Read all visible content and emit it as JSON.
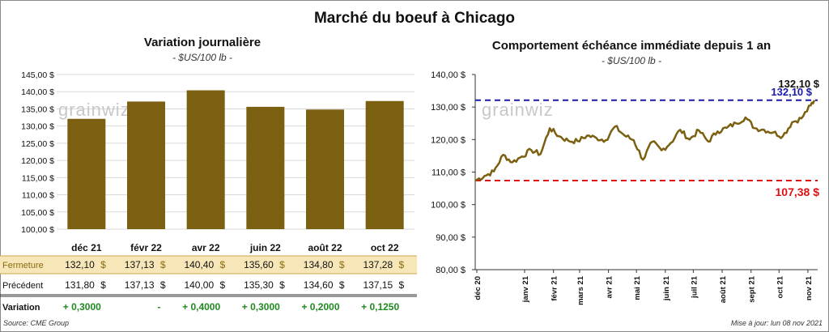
{
  "title": "Marché du boeuf à Chicago",
  "left": {
    "subtitle": "Variation journalière",
    "unit": "- $US/100 lb -",
    "watermark": "grainwiz",
    "y_ticks": [
      "145,00 $",
      "140,00 $",
      "135,00 $",
      "130,00 $",
      "125,00 $",
      "120,00 $",
      "115,00 $",
      "110,00 $",
      "105,00 $",
      "100,00 $"
    ],
    "table": {
      "fermeture_label": "Fermeture",
      "precedent_label": "Précédent",
      "variation_label": "Variation",
      "fermeture": [
        "132,10",
        "137,13",
        "140,40",
        "135,60",
        "134,80",
        "137,28"
      ],
      "precedent": [
        "131,80",
        "137,13",
        "140,00",
        "135,30",
        "134,60",
        "137,15"
      ],
      "variation": [
        "+ 0,3000",
        "-",
        "+ 0,4000",
        "+ 0,3000",
        "+ 0,2000",
        "+ 0,1250"
      ],
      "currency": "$"
    }
  },
  "right": {
    "subtitle": "Comportement  échéance immédiate depuis 1 an",
    "unit": "- $US/100 lb -",
    "watermark": "grainwiz",
    "y_ticks": [
      "140,00 $",
      "130,00 $",
      "120,00 $",
      "110,00 $",
      "100,00 $",
      "90,00 $",
      "80,00 $"
    ],
    "x_ticks": [
      "déc 20",
      "janv 21",
      "févr 21",
      "mars 21",
      "avr 21",
      "mai 21",
      "juin 21",
      "juil 21",
      "août 21",
      "sept 21",
      "oct 21",
      "nov 21"
    ],
    "last_label": "132,10 $",
    "high_label": "132,10 $",
    "low_label": "107,38 $"
  },
  "footer": {
    "source": "Source: CME Group",
    "updated": "Mise à jour: lun 08 nov 2021"
  },
  "chart_data": [
    {
      "type": "bar",
      "title": "Variation journalière",
      "categories": [
        "déc 21",
        "févr 22",
        "avr 22",
        "juin 22",
        "août 22",
        "oct 22"
      ],
      "values": [
        132.1,
        137.13,
        140.4,
        135.6,
        134.8,
        137.28
      ],
      "ylim": [
        100,
        145
      ],
      "color": "#7a6010",
      "grid": true
    },
    {
      "type": "line",
      "title": "Comportement  échéance immédiate depuis 1 an",
      "ylim": [
        80,
        140
      ],
      "color": "#7a6010",
      "high": {
        "value": 132.1,
        "color": "#1a1aaa"
      },
      "low": {
        "value": 107.38,
        "color": "#dd1111"
      },
      "x": [
        "2020-11-09",
        "2020-11-19",
        "2020-11-29",
        "2020-12-09",
        "2020-12-19",
        "2020-12-29",
        "2021-01-08",
        "2021-01-18",
        "2021-01-28",
        "2021-02-07",
        "2021-02-17",
        "2021-02-27",
        "2021-03-09",
        "2021-03-19",
        "2021-03-29",
        "2021-04-08",
        "2021-04-18",
        "2021-04-28",
        "2021-05-08",
        "2021-05-18",
        "2021-05-28",
        "2021-06-07",
        "2021-06-17",
        "2021-06-27",
        "2021-07-07",
        "2021-07-17",
        "2021-07-27",
        "2021-08-06",
        "2021-08-16",
        "2021-08-26",
        "2021-09-05",
        "2021-09-15",
        "2021-09-25",
        "2021-10-05",
        "2021-10-15",
        "2021-10-25",
        "2021-11-04",
        "2021-11-08"
      ],
      "y": [
        107.4,
        108.8,
        110.2,
        115.3,
        113.0,
        114.8,
        116.8,
        115.5,
        123.5,
        121.0,
        119.6,
        119.5,
        121.2,
        120.5,
        119.8,
        124.0,
        121.3,
        119.8,
        113.8,
        119.3,
        116.7,
        119.0,
        123.0,
        120.0,
        122.8,
        119.4,
        122.5,
        123.6,
        125.0,
        126.8,
        123.5,
        123.0,
        122.2,
        121.0,
        125.3,
        126.5,
        130.5,
        132.1
      ]
    }
  ]
}
